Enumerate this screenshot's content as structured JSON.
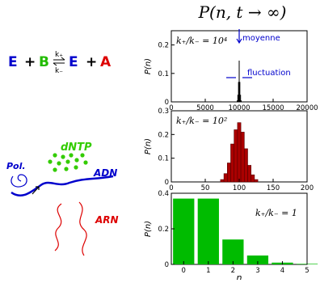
{
  "title": "P(n, t → ∞)",
  "reaction": {
    "E": "E",
    "plus1": "+",
    "B": "B",
    "k_plus": "k₊",
    "k_minus": "k₋",
    "E2": "E",
    "plus2": "+",
    "A": "A",
    "colors": {
      "E": "#0000cc",
      "B": "#22bb00",
      "A": "#dd0000"
    }
  },
  "cartoon": {
    "pol_label": "Pol.",
    "dntp_label": "dNTP",
    "adn_label": "ADN",
    "arn_label": "ARN",
    "colors": {
      "blue": "#0000cc",
      "green": "#33cc00",
      "red": "#dd0000"
    }
  },
  "chart_data": [
    {
      "type": "bar",
      "panel": "top",
      "ratio_label": "k₊/k₋ = 10⁴",
      "ylabel": "P(n)",
      "ylim": [
        0,
        0.25
      ],
      "xlim": [
        0,
        20000
      ],
      "xticks": [
        "0",
        "5000",
        "10000",
        "15000",
        "20000"
      ],
      "yticks": [
        "0",
        "0.1",
        "0.2"
      ],
      "annotations": {
        "mean": "moyenne",
        "fluct": "fluctuation"
      },
      "bar_color": "#000000",
      "bars": [
        {
          "x": 9700,
          "y": 0.005
        },
        {
          "x": 9800,
          "y": 0.025
        },
        {
          "x": 9900,
          "y": 0.07
        },
        {
          "x": 10000,
          "y": 0.145
        },
        {
          "x": 10100,
          "y": 0.07
        },
        {
          "x": 10200,
          "y": 0.025
        },
        {
          "x": 10300,
          "y": 0.005
        }
      ]
    },
    {
      "type": "bar",
      "panel": "middle",
      "ratio_label": "k₊/k₋ = 10²",
      "ylabel": "P(n)",
      "ylim": [
        0,
        0.3
      ],
      "xlim": [
        0,
        200
      ],
      "xticks": [
        "0",
        "50",
        "100",
        "150",
        "200"
      ],
      "yticks": [
        "0",
        "0.1",
        "0.2",
        "0.3"
      ],
      "bar_color": "#aa0000",
      "bars": [
        {
          "x": 75,
          "y": 0.01
        },
        {
          "x": 80,
          "y": 0.035
        },
        {
          "x": 85,
          "y": 0.08
        },
        {
          "x": 90,
          "y": 0.16
        },
        {
          "x": 95,
          "y": 0.22
        },
        {
          "x": 100,
          "y": 0.25
        },
        {
          "x": 105,
          "y": 0.21
        },
        {
          "x": 110,
          "y": 0.14
        },
        {
          "x": 115,
          "y": 0.07
        },
        {
          "x": 120,
          "y": 0.03
        },
        {
          "x": 125,
          "y": 0.01
        }
      ]
    },
    {
      "type": "bar",
      "panel": "bottom",
      "ratio_label": "k₊/k₋ = 1",
      "ylabel": "P(n)",
      "xlabel": "n",
      "ylim": [
        0,
        0.4
      ],
      "xlim": [
        -0.5,
        5
      ],
      "xticks": [
        "0",
        "1",
        "2",
        "3",
        "4",
        "5"
      ],
      "yticks": [
        "0",
        "0.2",
        "0.4"
      ],
      "bar_color": "#00bb00",
      "bars": [
        {
          "x": 0,
          "y": 0.37
        },
        {
          "x": 1,
          "y": 0.37
        },
        {
          "x": 2,
          "y": 0.14
        },
        {
          "x": 3,
          "y": 0.05
        },
        {
          "x": 4,
          "y": 0.01
        },
        {
          "x": 5,
          "y": 0.003
        }
      ]
    }
  ]
}
